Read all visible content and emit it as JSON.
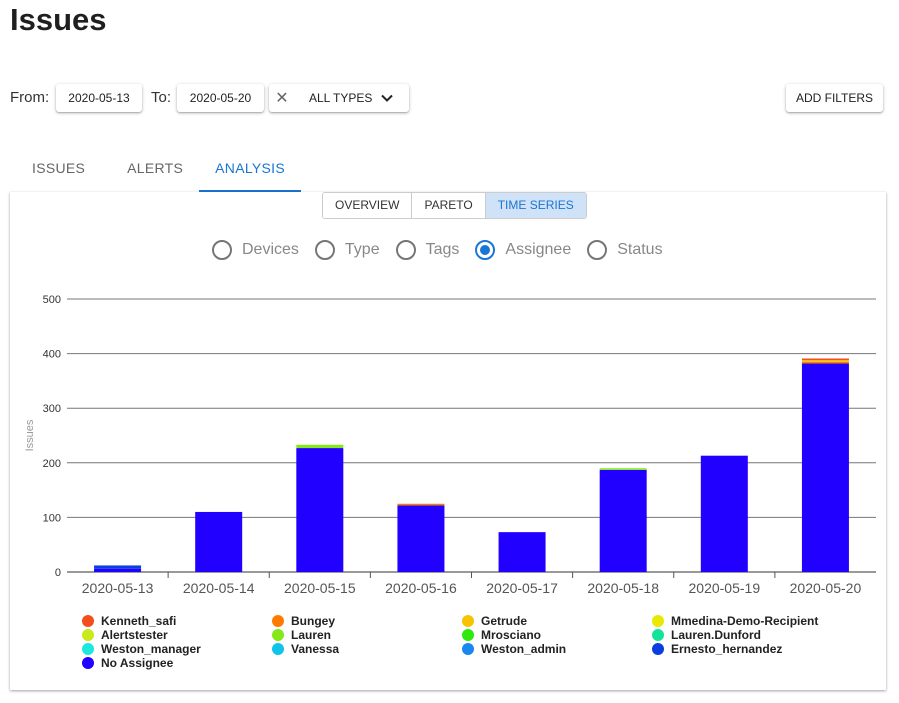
{
  "page": {
    "title": "Issues"
  },
  "filters": {
    "from_label": "From:",
    "from_value": "2020-05-13",
    "to_label": "To:",
    "to_value": "2020-05-20",
    "types_label": "ALL TYPES",
    "add_filters_label": "ADD FILTERS"
  },
  "tabs": [
    {
      "label": "ISSUES",
      "active": false
    },
    {
      "label": "ALERTS",
      "active": false
    },
    {
      "label": "ANALYSIS",
      "active": true
    }
  ],
  "view_toggle": [
    {
      "label": "OVERVIEW",
      "active": false
    },
    {
      "label": "PARETO",
      "active": false
    },
    {
      "label": "TIME SERIES",
      "active": true
    }
  ],
  "group_by": [
    {
      "label": "Devices",
      "checked": false
    },
    {
      "label": "Type",
      "checked": false
    },
    {
      "label": "Tags",
      "checked": false
    },
    {
      "label": "Assignee",
      "checked": true
    },
    {
      "label": "Status",
      "checked": false
    }
  ],
  "colors": {
    "accent": "#1976d2"
  },
  "chart_data": {
    "type": "bar",
    "stacked": true,
    "ylabel": "Issues",
    "ylim": [
      0,
      500
    ],
    "yticks": [
      0,
      100,
      200,
      300,
      400,
      500
    ],
    "grid": true,
    "categories": [
      "2020-05-13",
      "2020-05-14",
      "2020-05-15",
      "2020-05-16",
      "2020-05-17",
      "2020-05-18",
      "2020-05-19",
      "2020-05-20"
    ],
    "series": [
      {
        "name": "No Assignee",
        "color": "#2200ff",
        "values": [
          6,
          110,
          227,
          122,
          73,
          187,
          213,
          382
        ]
      },
      {
        "name": "Ernesto_hernandez",
        "color": "#0b3ee0",
        "values": [
          6,
          0,
          0,
          0,
          0,
          0,
          0,
          0
        ]
      },
      {
        "name": "Lauren",
        "color": "#84e81a",
        "values": [
          0,
          0,
          6,
          0,
          0,
          3,
          0,
          0
        ]
      },
      {
        "name": "Bungey",
        "color": "#ff7b00",
        "values": [
          0,
          0,
          0,
          3,
          0,
          0,
          0,
          3
        ]
      },
      {
        "name": "Getrude",
        "color": "#f7c300",
        "values": [
          0,
          0,
          0,
          0,
          0,
          0,
          0,
          3
        ]
      },
      {
        "name": "Kenneth_safi",
        "color": "#f24e1e",
        "values": [
          0,
          0,
          0,
          0,
          0,
          0,
          0,
          3
        ]
      },
      {
        "name": "Mmedina-Demo-Recipient",
        "color": "#e8e800",
        "values": [
          0,
          0,
          0,
          0,
          0,
          0,
          0,
          0
        ]
      },
      {
        "name": "Alertstester",
        "color": "#c8ea1a",
        "values": [
          0,
          0,
          0,
          0,
          0,
          0,
          0,
          0
        ]
      },
      {
        "name": "Mrosciano",
        "color": "#2fe80c",
        "values": [
          0,
          0,
          0,
          0,
          0,
          0,
          0,
          0
        ]
      },
      {
        "name": "Lauren.Dunford",
        "color": "#15e39a",
        "values": [
          0,
          0,
          0,
          0,
          0,
          0,
          0,
          0
        ]
      },
      {
        "name": "Weston_manager",
        "color": "#1de8df",
        "values": [
          0,
          0,
          0,
          0,
          0,
          0,
          0,
          0
        ]
      },
      {
        "name": "Vanessa",
        "color": "#10c3e8",
        "values": [
          0,
          0,
          0,
          0,
          0,
          0,
          0,
          0
        ]
      },
      {
        "name": "Weston_admin",
        "color": "#1888ee",
        "values": [
          0,
          0,
          0,
          0,
          0,
          0,
          0,
          0
        ]
      }
    ],
    "legend": [
      {
        "label": "Kenneth_safi",
        "color": "#f24e1e"
      },
      {
        "label": "Bungey",
        "color": "#ff7b00"
      },
      {
        "label": "Getrude",
        "color": "#f7c300"
      },
      {
        "label": "Mmedina-Demo-Recipient",
        "color": "#e8e800"
      },
      {
        "label": "Alertstester",
        "color": "#c8ea1a"
      },
      {
        "label": "Lauren",
        "color": "#84e81a"
      },
      {
        "label": "Mrosciano",
        "color": "#2fe80c"
      },
      {
        "label": "Lauren.Dunford",
        "color": "#15e39a"
      },
      {
        "label": "Weston_manager",
        "color": "#1de8df"
      },
      {
        "label": "Vanessa",
        "color": "#10c3e8"
      },
      {
        "label": "Weston_admin",
        "color": "#1888ee"
      },
      {
        "label": "Ernesto_hernandez",
        "color": "#0b3ee0"
      },
      {
        "label": "No Assignee",
        "color": "#2200ff"
      }
    ]
  }
}
